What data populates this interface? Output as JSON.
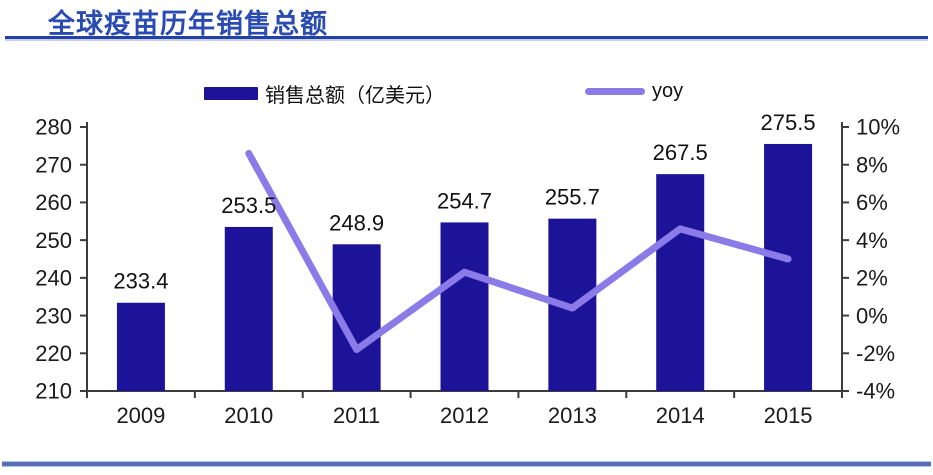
{
  "page": {
    "title": "全球疫苗历年销售总额"
  },
  "colors": {
    "title_text": "#2a4cb2",
    "title_rule": "#2240a5",
    "bottom_rule": "#5470b6",
    "bar": "#1c1399",
    "line": "#8a7be8",
    "axis": "#3c3c3c",
    "text": "#1a1a1a"
  },
  "legend": {
    "items": [
      {
        "label": "销售总额（亿美元）",
        "swatch": "bar"
      },
      {
        "label": "yoy",
        "swatch": "line"
      }
    ]
  },
  "chart_data": {
    "type": "bar+line combo",
    "title": "全球疫苗历年销售总额",
    "categories": [
      "2009",
      "2010",
      "2011",
      "2012",
      "2013",
      "2014",
      "2015"
    ],
    "series": [
      {
        "name": "销售总额（亿美元）",
        "type": "bar",
        "axis": "left",
        "values": [
          233.4,
          253.5,
          248.9,
          254.7,
          255.7,
          267.5,
          275.5
        ],
        "labels": [
          "233.4",
          "253.5",
          "248.9",
          "254.7",
          "255.7",
          "267.5",
          "275.5"
        ]
      },
      {
        "name": "yoy",
        "type": "line",
        "axis": "right",
        "values": [
          null,
          8.6,
          -1.8,
          2.3,
          0.4,
          4.6,
          3.0
        ]
      }
    ],
    "left_axis": {
      "min": 210,
      "max": 280,
      "step": 10,
      "ticks": [
        "210",
        "220",
        "230",
        "240",
        "250",
        "260",
        "270",
        "280"
      ]
    },
    "right_axis": {
      "min": -4,
      "max": 10,
      "step": 2,
      "ticks": [
        "-4%",
        "-2%",
        "0%",
        "2%",
        "4%",
        "6%",
        "8%",
        "10%"
      ]
    },
    "grid": false,
    "legend_position": "top"
  }
}
